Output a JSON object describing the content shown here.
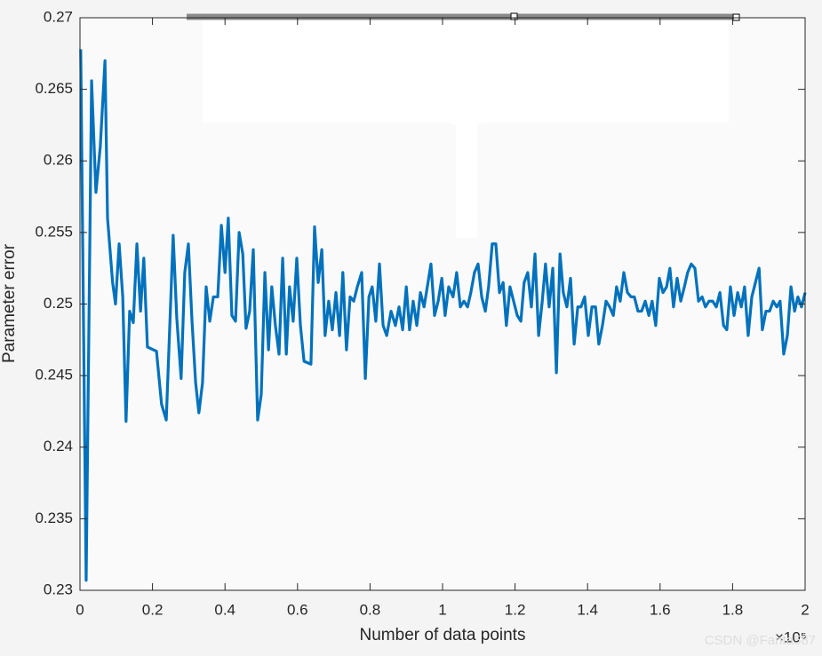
{
  "chart_data": {
    "type": "line",
    "x_label": "Number of data points",
    "y_label": "Parameter error",
    "x_multiplier": "×10⁵",
    "watermark": "CSDN @Fanta587",
    "color": "#0072bd",
    "xlim": [
      0,
      2
    ],
    "xticks": [
      0,
      0.2,
      0.4,
      0.6,
      0.8,
      1,
      1.2,
      1.4,
      1.6,
      1.8,
      2
    ],
    "ylim": [
      0.23,
      0.27
    ],
    "yticks": [
      0.23,
      0.235,
      0.24,
      0.245,
      0.25,
      0.255,
      0.26,
      0.265,
      0.27
    ],
    "x": [
      0.002,
      0.017,
      0.032,
      0.044,
      0.056,
      0.069,
      0.076,
      0.09,
      0.098,
      0.108,
      0.118,
      0.127,
      0.137,
      0.147,
      0.157,
      0.167,
      0.176,
      0.186,
      0.211,
      0.225,
      0.238,
      0.257,
      0.267,
      0.279,
      0.289,
      0.299,
      0.309,
      0.319,
      0.328,
      0.338,
      0.348,
      0.358,
      0.368,
      0.38,
      0.39,
      0.4,
      0.409,
      0.419,
      0.429,
      0.439,
      0.449,
      0.458,
      0.468,
      0.478,
      0.49,
      0.5,
      0.51,
      0.52,
      0.529,
      0.539,
      0.549,
      0.559,
      0.569,
      0.578,
      0.588,
      0.598,
      0.608,
      0.618,
      0.637,
      0.647,
      0.657,
      0.667,
      0.676,
      0.686,
      0.696,
      0.706,
      0.716,
      0.725,
      0.735,
      0.745,
      0.755,
      0.765,
      0.777,
      0.787,
      0.797,
      0.806,
      0.816,
      0.826,
      0.836,
      0.846,
      0.858,
      0.87,
      0.88,
      0.89,
      0.9,
      0.909,
      0.919,
      0.929,
      0.939,
      0.949,
      0.958,
      0.968,
      0.978,
      0.988,
      0.998,
      1.007,
      1.017,
      1.029,
      1.039,
      1.049,
      1.059,
      1.069,
      1.078,
      1.088,
      1.098,
      1.108,
      1.118,
      1.127,
      1.137,
      1.147,
      1.157,
      1.167,
      1.176,
      1.186,
      1.196,
      1.206,
      1.216,
      1.225,
      1.235,
      1.245,
      1.255,
      1.265,
      1.275,
      1.284,
      1.294,
      1.304,
      1.314,
      1.324,
      1.333,
      1.343,
      1.353,
      1.363,
      1.373,
      1.382,
      1.392,
      1.402,
      1.412,
      1.422,
      1.431,
      1.441,
      1.451,
      1.461,
      1.471,
      1.48,
      1.49,
      1.5,
      1.51,
      1.52,
      1.529,
      1.539,
      1.549,
      1.559,
      1.569,
      1.578,
      1.588,
      1.598,
      1.608,
      1.618,
      1.627,
      1.637,
      1.647,
      1.657,
      1.667,
      1.676,
      1.686,
      1.696,
      1.706,
      1.716,
      1.725,
      1.735,
      1.745,
      1.755,
      1.765,
      1.775,
      1.784,
      1.794,
      1.804,
      1.814,
      1.824,
      1.833,
      1.843,
      1.853,
      1.863,
      1.873,
      1.882,
      1.892,
      1.902,
      1.912,
      1.922,
      1.931,
      1.941,
      1.951,
      1.961,
      1.971,
      1.98,
      1.99,
      2.0
    ],
    "values": [
      0.2678,
      0.2307,
      0.2656,
      0.2578,
      0.261,
      0.267,
      0.256,
      0.2515,
      0.25,
      0.2542,
      0.2505,
      0.2418,
      0.2495,
      0.2487,
      0.2542,
      0.2495,
      0.2532,
      0.247,
      0.2467,
      0.243,
      0.2419,
      0.2548,
      0.249,
      0.2448,
      0.2522,
      0.2542,
      0.2488,
      0.2445,
      0.2424,
      0.2445,
      0.2512,
      0.2488,
      0.2505,
      0.2505,
      0.2555,
      0.2522,
      0.256,
      0.2492,
      0.2488,
      0.255,
      0.2535,
      0.2483,
      0.2495,
      0.2538,
      0.2419,
      0.2437,
      0.2522,
      0.2468,
      0.2512,
      0.2485,
      0.2465,
      0.2532,
      0.2465,
      0.2512,
      0.2488,
      0.2532,
      0.2485,
      0.246,
      0.2458,
      0.2554,
      0.2515,
      0.2538,
      0.2478,
      0.2502,
      0.2482,
      0.2508,
      0.2478,
      0.2522,
      0.2468,
      0.2505,
      0.2502,
      0.2512,
      0.2522,
      0.2448,
      0.2505,
      0.2512,
      0.2488,
      0.2528,
      0.2485,
      0.2478,
      0.2495,
      0.2485,
      0.2498,
      0.2482,
      0.2512,
      0.2482,
      0.2502,
      0.2485,
      0.2508,
      0.2498,
      0.2512,
      0.2528,
      0.2492,
      0.2502,
      0.2518,
      0.2492,
      0.2512,
      0.2505,
      0.2522,
      0.2498,
      0.2502,
      0.2498,
      0.2508,
      0.2522,
      0.2528,
      0.2505,
      0.2495,
      0.2512,
      0.2542,
      0.2542,
      0.2508,
      0.2515,
      0.2485,
      0.2512,
      0.2502,
      0.2492,
      0.2488,
      0.2515,
      0.2522,
      0.2498,
      0.2535,
      0.2478,
      0.2502,
      0.2528,
      0.2498,
      0.2525,
      0.2452,
      0.2535,
      0.2508,
      0.2498,
      0.2518,
      0.2472,
      0.2498,
      0.2498,
      0.2505,
      0.2478,
      0.2498,
      0.2498,
      0.2472,
      0.2485,
      0.2502,
      0.2498,
      0.2492,
      0.2512,
      0.2502,
      0.2522,
      0.2508,
      0.2505,
      0.2505,
      0.2495,
      0.2495,
      0.2502,
      0.2492,
      0.2502,
      0.2485,
      0.2518,
      0.2508,
      0.2512,
      0.2525,
      0.2498,
      0.2518,
      0.2502,
      0.2512,
      0.2522,
      0.2528,
      0.2525,
      0.2502,
      0.2505,
      0.2498,
      0.2502,
      0.2502,
      0.2498,
      0.2508,
      0.2485,
      0.2482,
      0.2512,
      0.2492,
      0.2508,
      0.2498,
      0.2512,
      0.2478,
      0.2505,
      0.2515,
      0.2525,
      0.2482,
      0.2495,
      0.2495,
      0.2502,
      0.2498,
      0.2502,
      0.2465,
      0.2478,
      0.2512,
      0.2495,
      0.2505,
      0.2498,
      0.2508
    ]
  }
}
